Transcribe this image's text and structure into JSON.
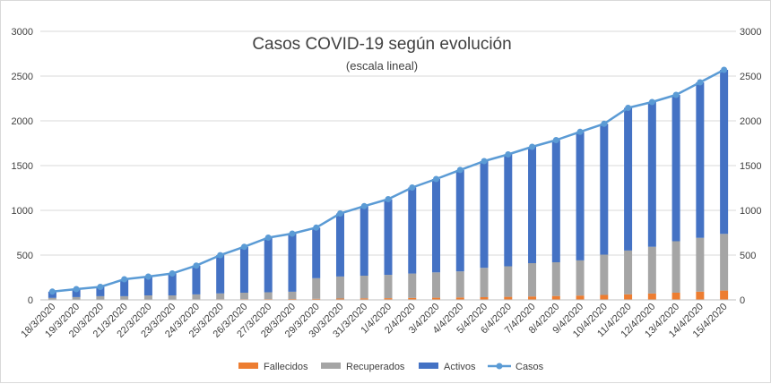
{
  "chart_data": {
    "type": "bar",
    "title": "Casos COVID-19 según evolución",
    "subtitle": "(escala lineal)",
    "xlabel": "",
    "ylabel": "",
    "ylim": [
      0,
      3000
    ],
    "y_ticks": [
      "0",
      "500",
      "1000",
      "1500",
      "2000",
      "2500",
      "3000"
    ],
    "grid": true,
    "stacked": true,
    "legend_position": "bottom",
    "categories": [
      "18/3/2020",
      "19/3/2020",
      "20/3/2020",
      "21/3/2020",
      "22/3/2020",
      "23/3/2020",
      "24/3/2020",
      "25/3/2020",
      "26/3/2020",
      "27/3/2020",
      "28/3/2020",
      "29/3/2020",
      "30/3/2020",
      "31/3/2020",
      "1/4/2020",
      "2/4/2020",
      "3/4/2020",
      "4/4/2020",
      "5/4/2020",
      "6/4/2020",
      "7/4/2020",
      "8/4/2020",
      "9/4/2020",
      "10/4/2020",
      "11/4/2020",
      "12/4/2020",
      "13/4/2020",
      "14/4/2020",
      "15/4/2020"
    ],
    "series": [
      {
        "name": "Fallecidos",
        "kind": "bar",
        "color": "#ed7d31",
        "values": [
          2,
          3,
          3,
          4,
          5,
          5,
          6,
          7,
          8,
          9,
          10,
          12,
          15,
          17,
          19,
          22,
          24,
          27,
          30,
          34,
          38,
          43,
          48,
          55,
          62,
          71,
          80,
          92,
          104
        ]
      },
      {
        "name": "Recuperados",
        "kind": "bar",
        "color": "#a5a5a5",
        "values": [
          20,
          28,
          38,
          37,
          45,
          45,
          55,
          65,
          72,
          76,
          81,
          230,
          246,
          253,
          260,
          272,
          283,
          291,
          328,
          341,
          372,
          377,
          393,
          450,
          489,
          522,
          575,
          601,
          633
        ]
      },
      {
        "name": "Activos",
        "kind": "bar",
        "color": "#4472c4",
        "values": [
          70,
          89,
          104,
          189,
          210,
          245,
          322,
          427,
          513,
          610,
          649,
          565,
          704,
          777,
          846,
          961,
          1043,
          1133,
          1192,
          1250,
          1300,
          1365,
          1436,
          1462,
          1594,
          1617,
          1635,
          1737,
          1833
        ]
      },
      {
        "name": "Casos",
        "kind": "line",
        "color": "#5b9bd5",
        "values": [
          92,
          120,
          145,
          230,
          260,
          295,
          383,
          499,
          593,
          695,
          740,
          807,
          965,
          1047,
          1125,
          1255,
          1350,
          1451,
          1550,
          1625,
          1710,
          1785,
          1877,
          1967,
          2145,
          2210,
          2290,
          2430,
          2570
        ]
      }
    ]
  }
}
